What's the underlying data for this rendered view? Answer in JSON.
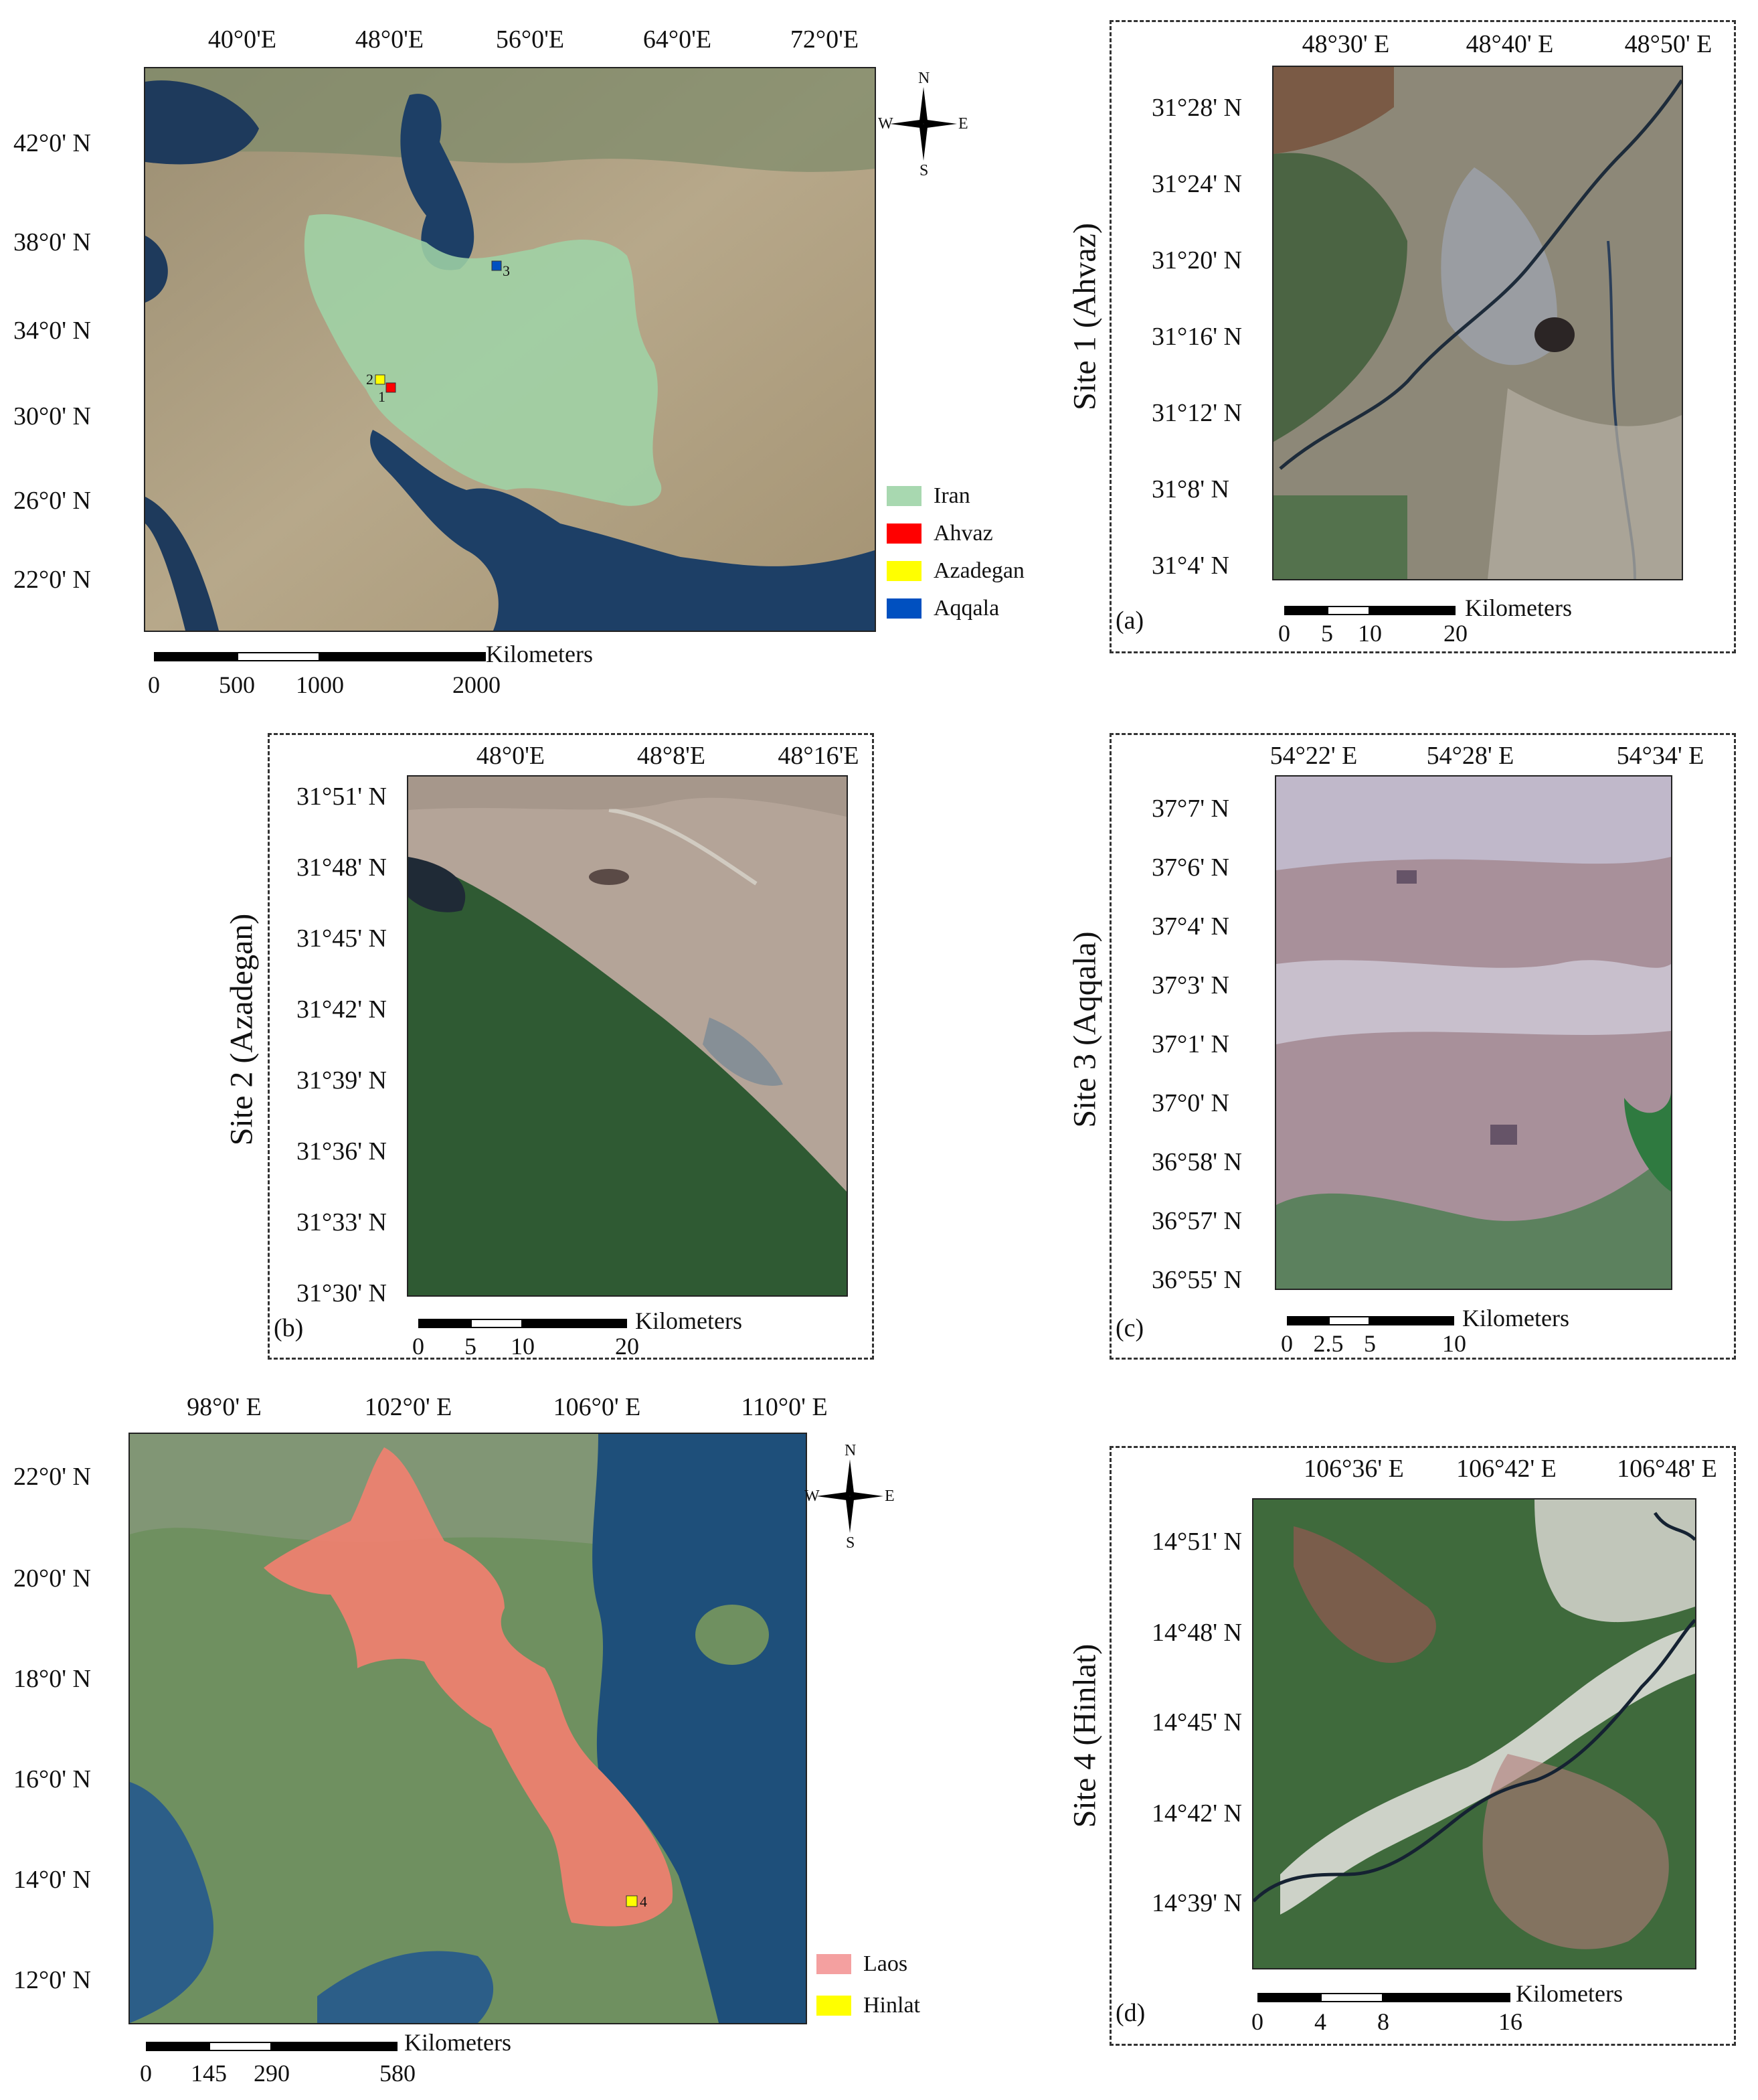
{
  "iran_overview": {
    "x_ticks": [
      "40°0'E",
      "48°0'E",
      "56°0'E",
      "64°0'E",
      "72°0'E"
    ],
    "y_ticks": [
      "42°0' N",
      "38°0' N",
      "34°0' N",
      "30°0' N",
      "26°0' N",
      "22°0' N"
    ],
    "legend": [
      {
        "label": "Iran",
        "color": "#a8d8b0"
      },
      {
        "label": "Ahvaz",
        "color": "#ff0000"
      },
      {
        "label": "Azadegan",
        "color": "#ffff00"
      },
      {
        "label": "Aqqala",
        "color": "#0050c0"
      }
    ],
    "site_markers": [
      "1",
      "2",
      "3"
    ],
    "compass": {
      "n": "N",
      "s": "S",
      "e": "E",
      "w": "W"
    },
    "scale": {
      "unit": "Kilometers",
      "labels": [
        "0",
        "500",
        "1000",
        "2000"
      ]
    }
  },
  "site1": {
    "title": "Site 1 (Ahvaz)",
    "letter": "(a)",
    "x_ticks": [
      "48°30' E",
      "48°40' E",
      "48°50' E"
    ],
    "y_ticks": [
      "31°28' N",
      "31°24' N",
      "31°20' N",
      "31°16' N",
      "31°12' N",
      "31°8'   N",
      "31°4'   N"
    ],
    "scale": {
      "unit": "Kilometers",
      "labels": [
        "0",
        "5",
        "10",
        "20"
      ]
    }
  },
  "site2": {
    "title": "Site 2 (Azadegan)",
    "letter": "(b)",
    "x_ticks": [
      "48°0'E",
      "48°8'E",
      "48°16'E"
    ],
    "y_ticks": [
      "31°51' N",
      "31°48' N",
      "31°45' N",
      "31°42' N",
      "31°39' N",
      "31°36' N",
      "31°33' N",
      "31°30' N"
    ],
    "scale": {
      "unit": "Kilometers",
      "labels": [
        "0",
        "5",
        "10",
        "20"
      ]
    }
  },
  "site3": {
    "title": "Site 3 (Aqqala)",
    "letter": "(c)",
    "x_ticks": [
      "54°22' E",
      "54°28' E",
      "54°34' E"
    ],
    "y_ticks": [
      "37°7'   N",
      "37°6'   N",
      "37°4'   N",
      "37°3'   N",
      "37°1'   N",
      "37°0'   N",
      "36°58' N",
      "36°57' N",
      "36°55' N"
    ],
    "scale": {
      "unit": "Kilometers",
      "labels": [
        "0",
        "2.5",
        "5",
        "10"
      ]
    }
  },
  "laos_overview": {
    "x_ticks": [
      "98°0' E",
      "102°0' E",
      "106°0' E",
      "110°0' E"
    ],
    "y_ticks": [
      "22°0' N",
      "20°0' N",
      "18°0' N",
      "16°0' N",
      "14°0' N",
      "12°0' N"
    ],
    "legend": [
      {
        "label": "Laos",
        "color": "#f4a0a0"
      },
      {
        "label": "Hinlat",
        "color": "#ffff00"
      }
    ],
    "site_markers": [
      "4"
    ],
    "compass": {
      "n": "N",
      "s": "S",
      "e": "E",
      "w": "W"
    },
    "scale": {
      "unit": "Kilometers",
      "labels": [
        "0",
        "145",
        "290",
        "580"
      ]
    }
  },
  "site4": {
    "title": "Site 4 (Hinlat)",
    "letter": "(d)",
    "x_ticks": [
      "106°36' E",
      "106°42' E",
      "106°48' E"
    ],
    "y_ticks": [
      "14°51' N",
      "14°48' N",
      "14°45' N",
      "14°42' N",
      "14°39' N"
    ],
    "scale": {
      "unit": "Kilometers",
      "labels": [
        "0",
        "4",
        "8",
        "16"
      ]
    }
  }
}
